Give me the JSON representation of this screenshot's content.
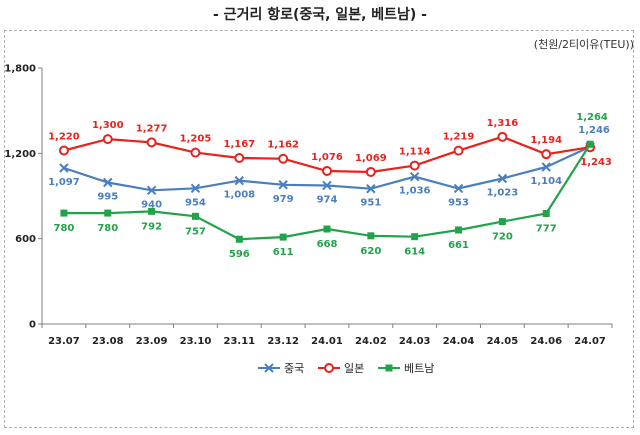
{
  "title": "-  근거리 항로(중국, 일본, 베트남)  -",
  "unit": "(천원/2티이유(TEU))",
  "colors": {
    "china": "#4a7fbf",
    "japan": "#e8231d",
    "vietnam": "#21a34a"
  },
  "chart_data": {
    "type": "line",
    "title": "-  근거리 항로(중국, 일본, 베트남)  -",
    "xlabel": "",
    "ylabel": "(천원/2티이유(TEU))",
    "ylim": [
      0,
      1800
    ],
    "yticks": [
      "0",
      "600",
      "1,200",
      "1,800"
    ],
    "grid": false,
    "legend": "bottom",
    "categories": [
      "23.07",
      "23.08",
      "23.09",
      "23.10",
      "23.11",
      "23.12",
      "24.01",
      "24.02",
      "24.03",
      "24.04",
      "24.05",
      "24.06",
      "24.07"
    ],
    "series": [
      {
        "name": "중국",
        "color": "#4a7fbf",
        "marker": "x",
        "values": [
          1097,
          995,
          940,
          954,
          1008,
          979,
          974,
          951,
          1036,
          953,
          1023,
          1104,
          1246
        ],
        "labels": [
          "1,097",
          "995",
          "940",
          "954",
          "1,008",
          "979",
          "974",
          "951",
          "1,036",
          "953",
          "1,023",
          "1,104",
          "1,246"
        ]
      },
      {
        "name": "일본",
        "color": "#e8231d",
        "marker": "circle",
        "values": [
          1220,
          1300,
          1277,
          1205,
          1167,
          1162,
          1076,
          1069,
          1114,
          1219,
          1316,
          1194,
          1243
        ],
        "labels": [
          "1,220",
          "1,300",
          "1,277",
          "1,205",
          "1,167",
          "1,162",
          "1,076",
          "1,069",
          "1,114",
          "1,219",
          "1,316",
          "1,194",
          "1,243"
        ]
      },
      {
        "name": "베트남",
        "color": "#21a34a",
        "marker": "square",
        "values": [
          780,
          780,
          792,
          757,
          596,
          611,
          668,
          620,
          614,
          661,
          720,
          777,
          1264
        ],
        "labels": [
          "780",
          "780",
          "792",
          "757",
          "596",
          "611",
          "668",
          "620",
          "614",
          "661",
          "720",
          "777",
          "1,264"
        ]
      }
    ]
  }
}
